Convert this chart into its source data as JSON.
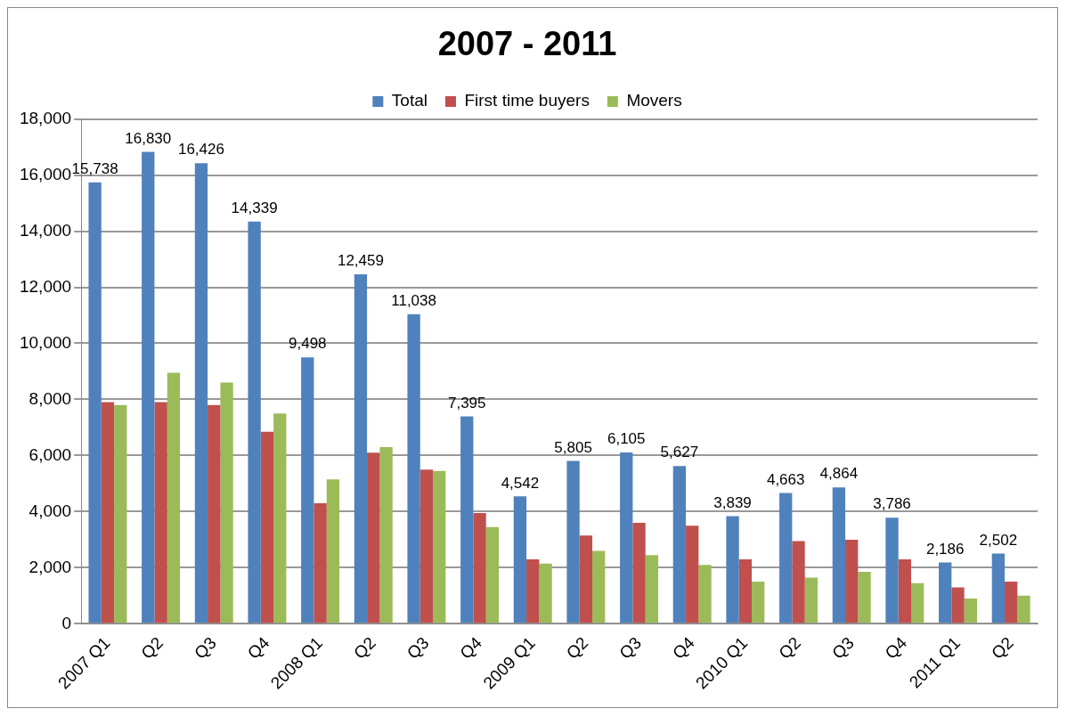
{
  "chart_data": {
    "type": "bar",
    "title": "2007 - 2011",
    "categories": [
      "2007 Q1",
      "Q2",
      "Q3",
      "Q4",
      "2008 Q1",
      "Q2",
      "Q3",
      "Q4",
      "2009 Q1",
      "Q2",
      "Q3",
      "Q4",
      "2010 Q1",
      "Q2",
      "Q3",
      "Q4",
      "2011 Q1",
      "Q2"
    ],
    "series": [
      {
        "name": "Total",
        "color": "#4f81bd",
        "values": [
          15738,
          16830,
          16426,
          14339,
          9498,
          12459,
          11038,
          7395,
          4542,
          5805,
          6105,
          5627,
          3839,
          4663,
          4864,
          3786,
          2186,
          2502
        ],
        "value_labels": [
          "15,738",
          "16,830",
          "16,426",
          "14,339",
          "9,498",
          "12,459",
          "11,038",
          "7,395",
          "4,542",
          "5,805",
          "6,105",
          "5,627",
          "3,839",
          "4,663",
          "4,864",
          "3,786",
          "2,186",
          "2,502"
        ]
      },
      {
        "name": "First time buyers",
        "color": "#c0504d",
        "values": [
          7900,
          7900,
          7800,
          6850,
          4300,
          6100,
          5500,
          3950,
          2300,
          3150,
          3600,
          3500,
          2300,
          2950,
          3000,
          2300,
          1300,
          1500
        ]
      },
      {
        "name": "Movers",
        "color": "#9bbb59",
        "values": [
          7800,
          8950,
          8600,
          7500,
          5150,
          6300,
          5450,
          3450,
          2150,
          2600,
          2450,
          2100,
          1500,
          1650,
          1850,
          1450,
          900,
          1000
        ]
      }
    ],
    "ylim": [
      0,
      18000
    ],
    "yticks": [
      0,
      {
        "value": 2000,
        "label": "2,000"
      },
      {
        "value": 4000,
        "label": "4,000"
      },
      {
        "value": 6000,
        "label": "6,000"
      },
      {
        "value": 8000,
        "label": "8,000"
      },
      {
        "value": 10000,
        "label": "10,000"
      },
      {
        "value": 12000,
        "label": "12,000"
      },
      {
        "value": 14000,
        "label": "14,000"
      },
      {
        "value": 16000,
        "label": "16,000"
      },
      {
        "value": 18000,
        "label": "18,000"
      }
    ],
    "grid": "y",
    "legend": "top"
  }
}
